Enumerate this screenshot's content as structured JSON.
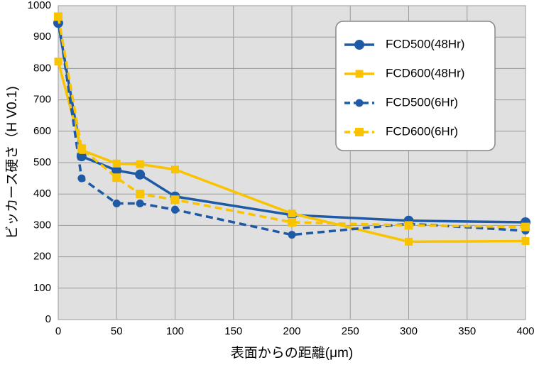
{
  "chart_data": {
    "type": "line",
    "x": [
      0,
      20,
      50,
      70,
      100,
      200,
      300,
      400
    ],
    "series": [
      {
        "name": "FCD500(48Hr)",
        "color": "#1f5aa6",
        "line_style": "solid",
        "marker": "circle",
        "values": [
          945,
          520,
          475,
          462,
          392,
          333,
          315,
          310
        ]
      },
      {
        "name": "FCD600(48Hr)",
        "color": "#f9c300",
        "line_style": "solid",
        "marker": "square",
        "values": [
          822,
          540,
          497,
          495,
          478,
          338,
          248,
          250
        ]
      },
      {
        "name": "FCD500(6Hr)",
        "color": "#1f5aa6",
        "line_style": "dashed",
        "marker": "circle",
        "values": [
          960,
          450,
          370,
          370,
          350,
          270,
          305,
          283
        ]
      },
      {
        "name": "FCD600(6Hr)",
        "color": "#f9c300",
        "line_style": "dashed",
        "marker": "square",
        "values": [
          965,
          545,
          452,
          400,
          382,
          310,
          300,
          295
        ]
      }
    ],
    "xlim": [
      0,
      400
    ],
    "xticks": [
      0,
      50,
      100,
      150,
      200,
      250,
      300,
      350,
      400
    ],
    "ylim": [
      0,
      1000
    ],
    "yticks": [
      0,
      100,
      200,
      300,
      400,
      500,
      600,
      700,
      800,
      900,
      1000
    ],
    "xlabel": "表面からの距離(μm)",
    "ylabel": "ビッカース硬さ（H V0.1)",
    "grid": true,
    "legend": "upper right"
  }
}
